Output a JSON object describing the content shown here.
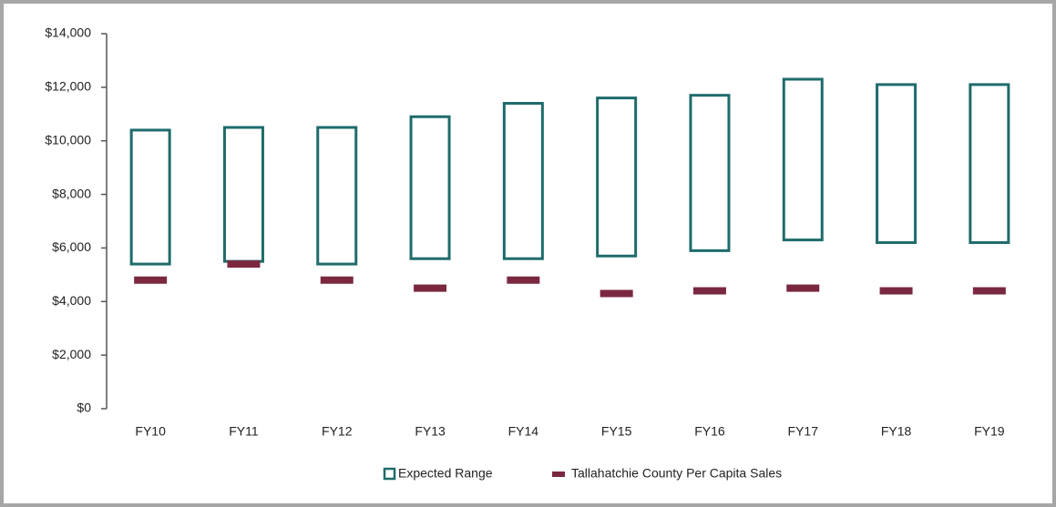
{
  "chart_data": {
    "type": "range",
    "categories": [
      "FY10",
      "FY11",
      "FY12",
      "FY13",
      "FY14",
      "FY15",
      "FY16",
      "FY17",
      "FY18",
      "FY19"
    ],
    "series": [
      {
        "name": "Expected Range",
        "color": "#1f6b6b",
        "low": [
          5400,
          5500,
          5400,
          5600,
          5600,
          5700,
          5900,
          6300,
          6200,
          6200
        ],
        "high": [
          10400,
          10500,
          10500,
          10900,
          11400,
          11600,
          11700,
          12300,
          12100,
          12100
        ]
      },
      {
        "name": "Tallahatchie County Per Capita Sales",
        "color": "#7a2840",
        "values": [
          4800,
          5400,
          4800,
          4500,
          4800,
          4300,
          4400,
          4500,
          4400,
          4400
        ]
      }
    ],
    "ylim": [
      0,
      14000
    ],
    "yticks": [
      {
        "value": 0,
        "label": "$0"
      },
      {
        "value": 2000,
        "label": "$2,000"
      },
      {
        "value": 4000,
        "label": "$4,000"
      },
      {
        "value": 6000,
        "label": "$6,000"
      },
      {
        "value": 8000,
        "label": "$8,000"
      },
      {
        "value": 10000,
        "label": "$10,000"
      },
      {
        "value": 12000,
        "label": "$12,000"
      },
      {
        "value": 14000,
        "label": "$14,000"
      }
    ],
    "legend": "bottom"
  }
}
